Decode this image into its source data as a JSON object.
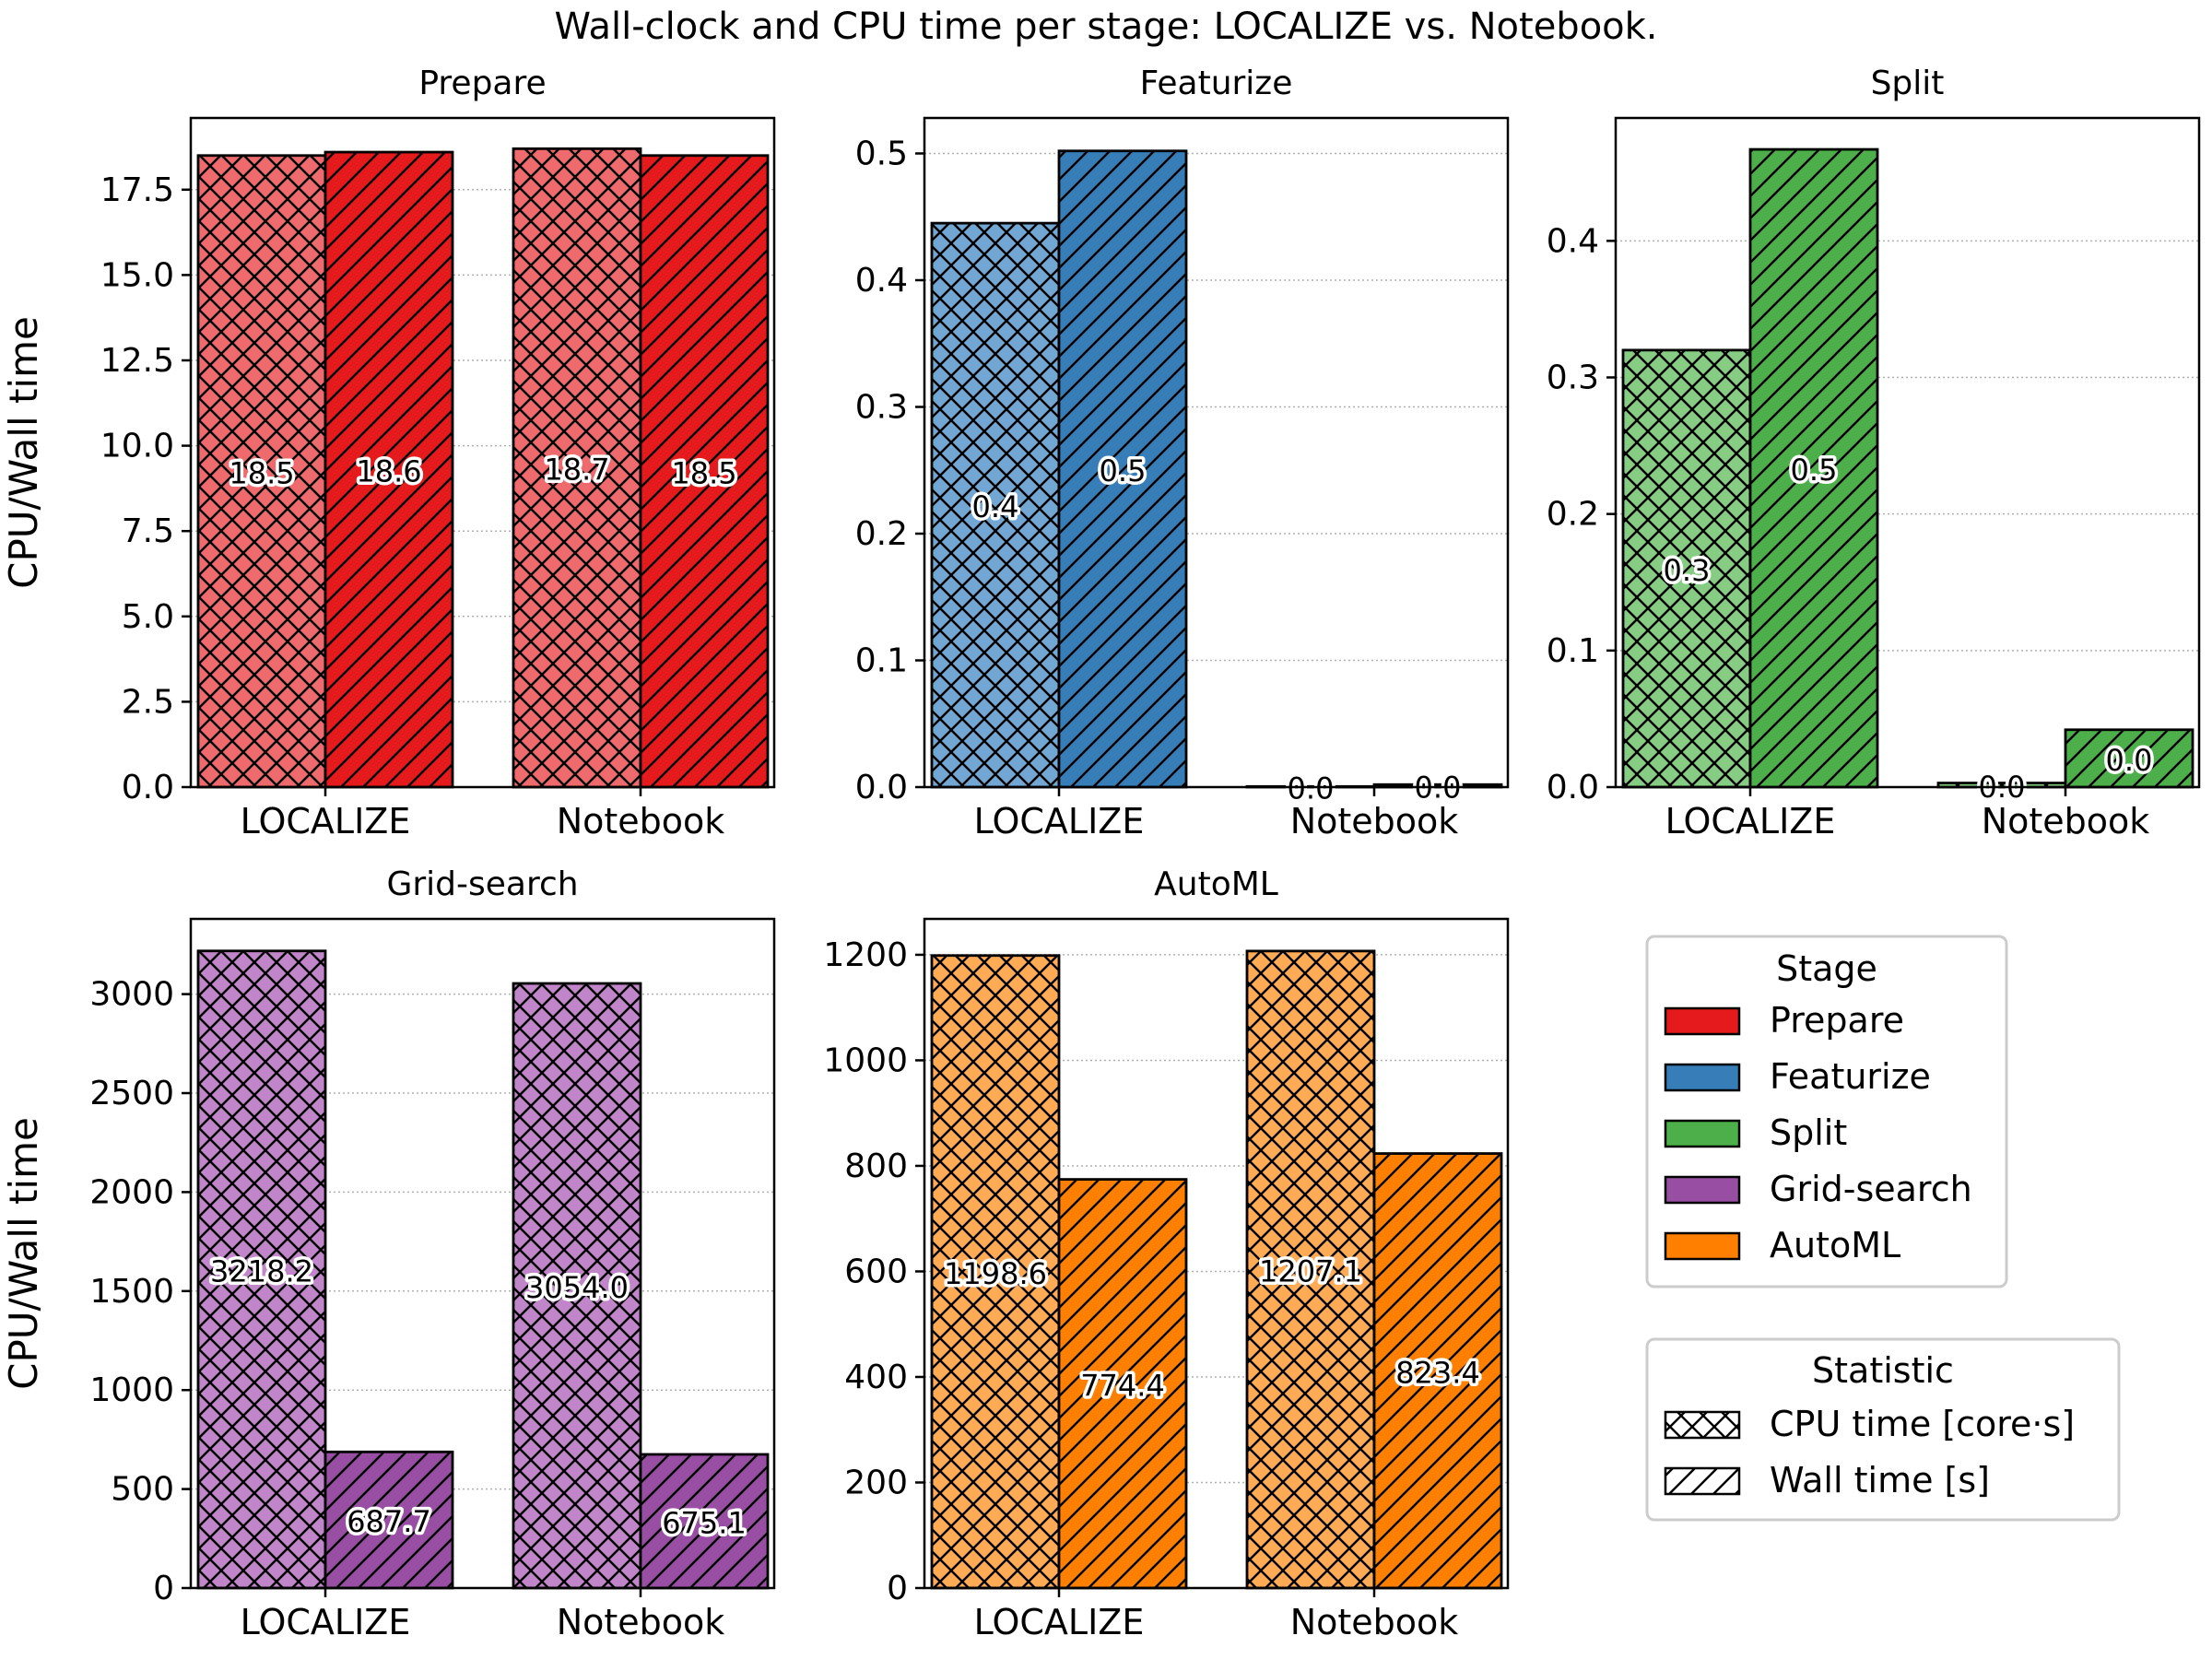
{
  "figure_title": "Wall-clock and CPU time per stage: LOCALIZE vs. Notebook.",
  "legend_stage": {
    "title": "Stage",
    "entries": [
      {
        "label": "Prepare",
        "color": "#e41a1c"
      },
      {
        "label": "Featurize",
        "color": "#377eb8"
      },
      {
        "label": "Split",
        "color": "#4daf4a"
      },
      {
        "label": "Grid-search",
        "color": "#984ea3"
      },
      {
        "label": "AutoML",
        "color": "#ff7f00"
      }
    ]
  },
  "legend_statistic": {
    "title": "Statistic",
    "entries": [
      {
        "label": "CPU time [core·s]",
        "hatch": "cross"
      },
      {
        "label": "Wall time [s]",
        "hatch": "diag"
      }
    ]
  },
  "chart_data": [
    {
      "type": "bar",
      "title": "Prepare",
      "color": "#e41a1c",
      "light_color": "#ee6a6c",
      "categories": [
        "LOCALIZE",
        "Notebook"
      ],
      "series": [
        {
          "name": "CPU time [core·s]",
          "values": [
            18.5,
            18.7
          ]
        },
        {
          "name": "Wall time [s]",
          "values": [
            18.6,
            18.5
          ]
        }
      ],
      "labels": [
        [
          "18.5",
          "18.7"
        ],
        [
          "18.6",
          "18.5"
        ]
      ],
      "ylabel": "CPU/Wall time",
      "ylim": [
        0,
        19.6
      ],
      "yticks": [
        0,
        2.5,
        5,
        7.5,
        10,
        12.5,
        15,
        17.5
      ],
      "ytick_labels": [
        "0.0",
        "2.5",
        "5.0",
        "7.5",
        "10.0",
        "12.5",
        "15.0",
        "17.5"
      ]
    },
    {
      "type": "bar",
      "title": "Featurize",
      "color": "#377eb8",
      "light_color": "#72a7d3",
      "categories": [
        "LOCALIZE",
        "Notebook"
      ],
      "series": [
        {
          "name": "CPU time [core·s]",
          "values": [
            0.445,
            0.0005
          ]
        },
        {
          "name": "Wall time [s]",
          "values": [
            0.502,
            0.002
          ]
        }
      ],
      "labels": [
        [
          "0.4",
          "0.0"
        ],
        [
          "0.5",
          "0.0"
        ]
      ],
      "ylabel": "",
      "ylim": [
        0,
        0.528
      ],
      "yticks": [
        0,
        0.1,
        0.2,
        0.3,
        0.4,
        0.5
      ],
      "ytick_labels": [
        "0.0",
        "0.1",
        "0.2",
        "0.3",
        "0.4",
        "0.5"
      ]
    },
    {
      "type": "bar",
      "title": "Split",
      "color": "#4daf4a",
      "light_color": "#86cc82",
      "categories": [
        "LOCALIZE",
        "Notebook"
      ],
      "series": [
        {
          "name": "CPU time [core·s]",
          "values": [
            0.32,
            0.003
          ]
        },
        {
          "name": "Wall time [s]",
          "values": [
            0.467,
            0.042
          ]
        }
      ],
      "labels": [
        [
          "0.3",
          "0.0"
        ],
        [
          "0.5",
          "0.0"
        ]
      ],
      "ylabel": "",
      "ylim": [
        0,
        0.49
      ],
      "yticks": [
        0,
        0.1,
        0.2,
        0.3,
        0.4
      ],
      "ytick_labels": [
        "0.0",
        "0.1",
        "0.2",
        "0.3",
        "0.4"
      ]
    },
    {
      "type": "bar",
      "title": "Grid-search",
      "color": "#984ea3",
      "light_color": "#c185c9",
      "categories": [
        "LOCALIZE",
        "Notebook"
      ],
      "series": [
        {
          "name": "CPU time [core·s]",
          "values": [
            3218.2,
            3054.0
          ]
        },
        {
          "name": "Wall time [s]",
          "values": [
            687.7,
            675.1
          ]
        }
      ],
      "labels": [
        [
          "3218.2",
          "3054.0"
        ],
        [
          "687.7",
          "675.1"
        ]
      ],
      "ylabel": "CPU/Wall time",
      "ylim": [
        0,
        3380
      ],
      "yticks": [
        0,
        500,
        1000,
        1500,
        2000,
        2500,
        3000
      ],
      "ytick_labels": [
        "0",
        "500",
        "1000",
        "1500",
        "2000",
        "2500",
        "3000"
      ]
    },
    {
      "type": "bar",
      "title": "AutoML",
      "color": "#ff7f00",
      "light_color": "#ffaa55",
      "categories": [
        "LOCALIZE",
        "Notebook"
      ],
      "series": [
        {
          "name": "CPU time [core·s]",
          "values": [
            1198.6,
            1207.1
          ]
        },
        {
          "name": "Wall time [s]",
          "values": [
            774.4,
            823.4
          ]
        }
      ],
      "labels": [
        [
          "1198.6",
          "1207.1"
        ],
        [
          "774.4",
          "823.4"
        ]
      ],
      "ylabel": "",
      "ylim": [
        0,
        1268
      ],
      "yticks": [
        0,
        200,
        400,
        600,
        800,
        1000,
        1200
      ],
      "ytick_labels": [
        "0",
        "200",
        "400",
        "600",
        "800",
        "1000",
        "1200"
      ]
    }
  ]
}
